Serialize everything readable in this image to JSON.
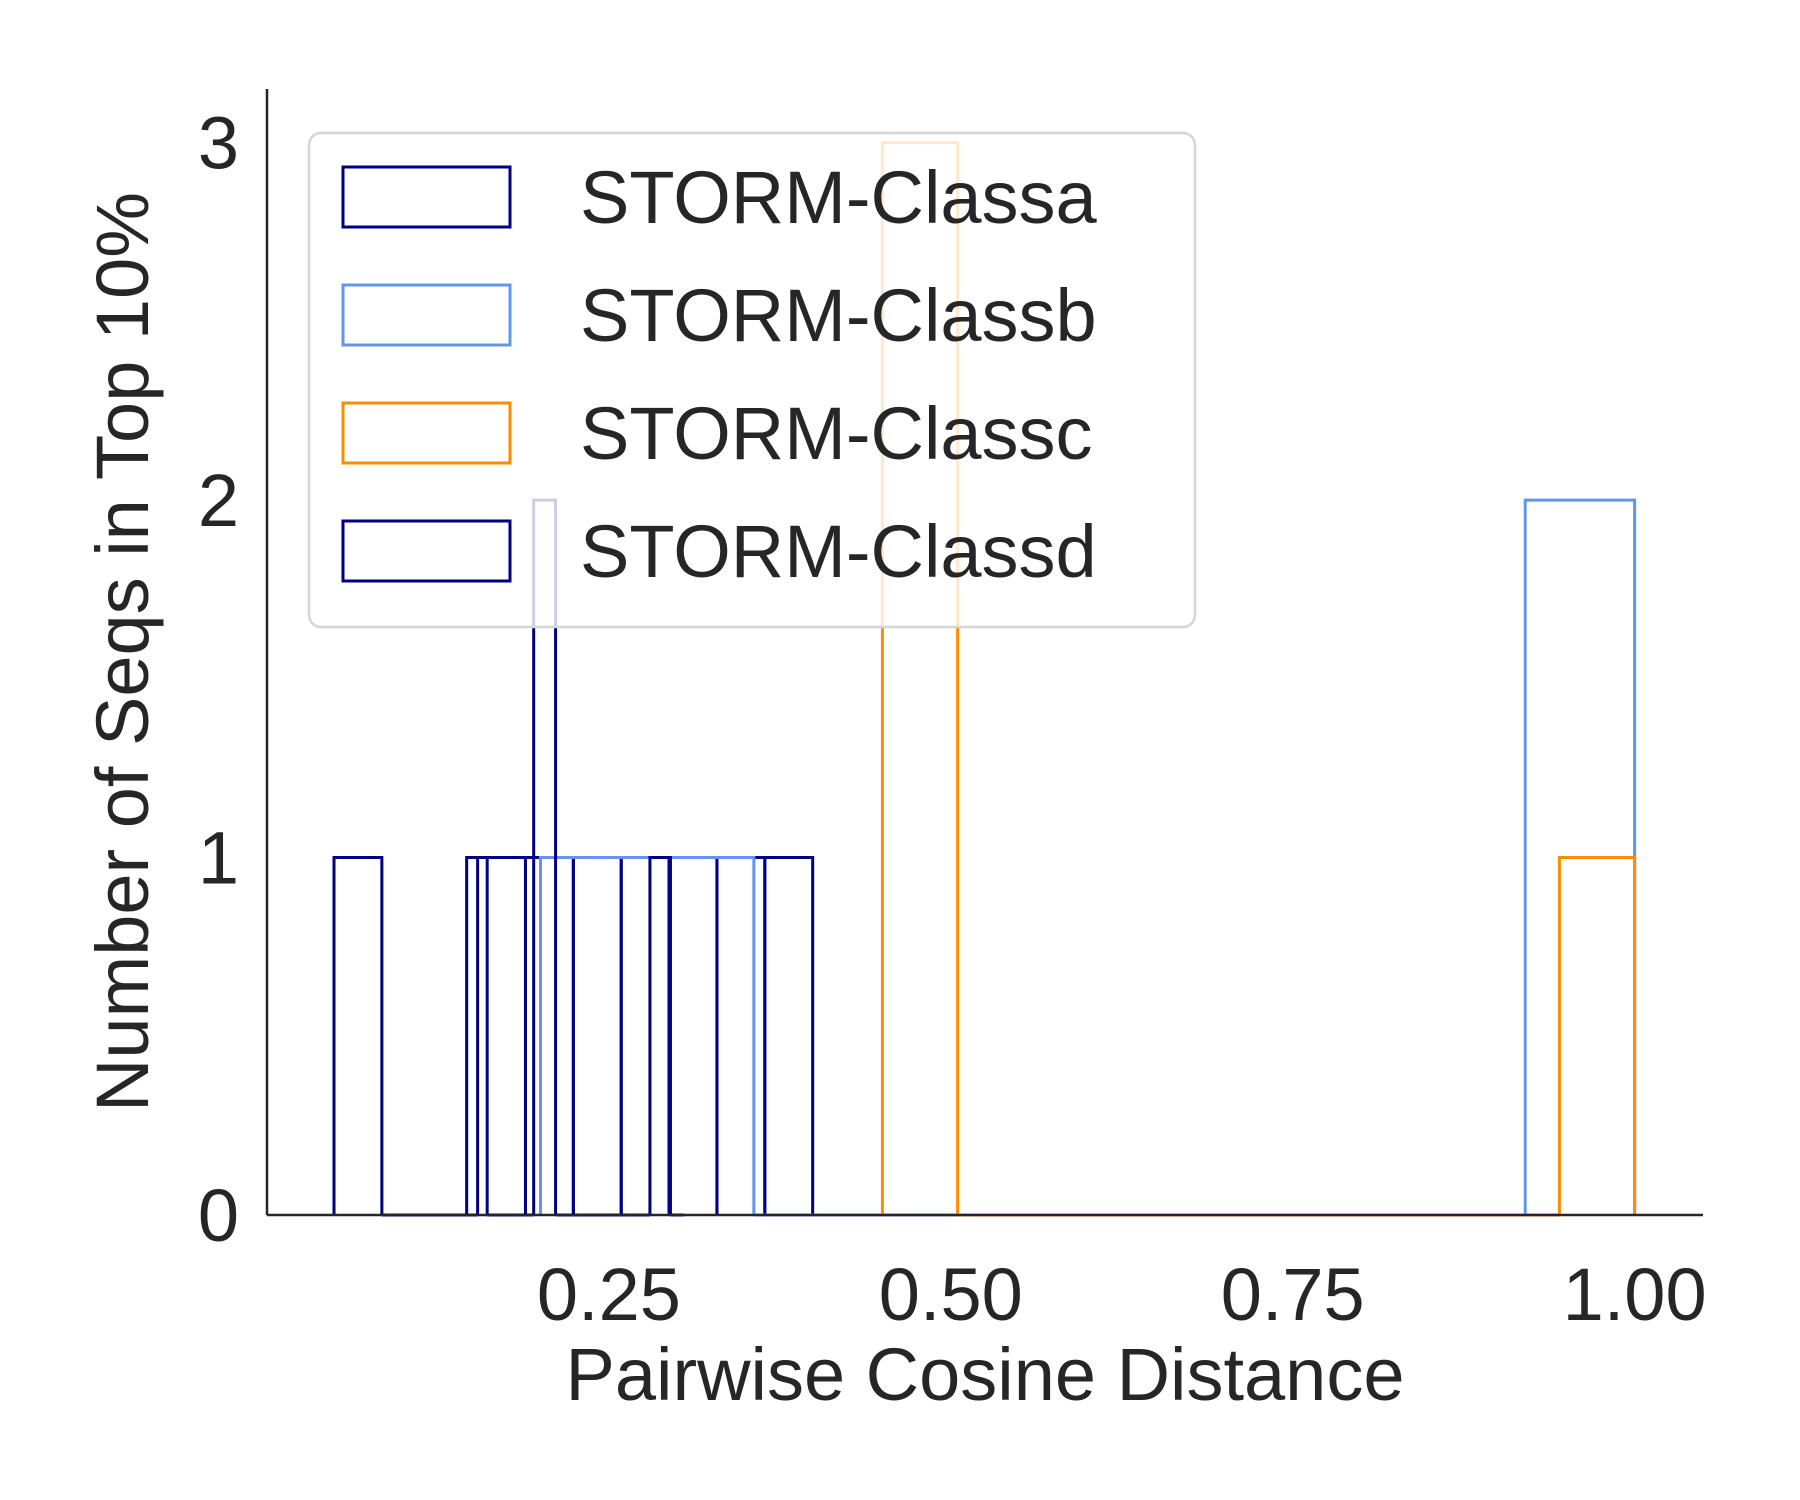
{
  "chart_data": {
    "type": "histogram",
    "xlabel": "Pairwise Cosine Distance",
    "ylabel": "Number of Seqs in Top 10%",
    "xlim": [
      0.0,
      1.05
    ],
    "ylim": [
      0,
      3.15
    ],
    "xticks": [
      0.25,
      0.5,
      0.75,
      1.0
    ],
    "xtick_labels": [
      "0.25",
      "0.50",
      "0.75",
      "1.00"
    ],
    "yticks": [
      0,
      1,
      2,
      3
    ],
    "ytick_labels": [
      "0",
      "1",
      "2",
      "3"
    ],
    "histtype": "step",
    "grid": false,
    "legend_position": "upper left",
    "series": [
      {
        "name": "STORM-Classa",
        "color": "#000080",
        "bin_edges": [
          0.049,
          0.084,
          0.119,
          0.154,
          0.189,
          0.224,
          0.259,
          0.294,
          0.329,
          0.364,
          0.399
        ],
        "counts": [
          1,
          0,
          0,
          1,
          1,
          1,
          1,
          1,
          1,
          1
        ]
      },
      {
        "name": "STORM-Classb",
        "color": "#6495ED",
        "bin_edges": [
          0.2,
          0.356,
          0.92,
          1.0
        ],
        "counts": [
          1,
          0,
          2
        ]
      },
      {
        "name": "STORM-Classc",
        "color": "#FF8C00",
        "bin_edges": [
          0.45,
          0.505,
          0.945,
          1.0
        ],
        "counts": [
          3,
          0,
          1
        ]
      },
      {
        "name": "STORM-Classd",
        "color": "#000080",
        "bin_edges": [
          0.146,
          0.161,
          0.195,
          0.211,
          0.226,
          0.28,
          0.295,
          0.305
        ],
        "counts": [
          1,
          0,
          2,
          0,
          0,
          1,
          0
        ]
      }
    ]
  }
}
